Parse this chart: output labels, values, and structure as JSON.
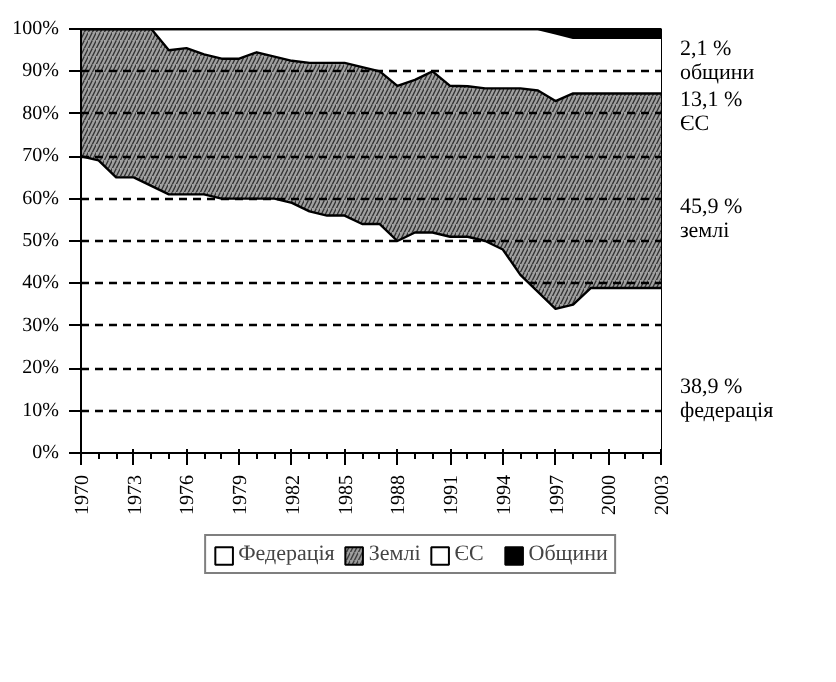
{
  "chart_data": {
    "type": "area",
    "stacked": true,
    "x": [
      1970,
      1971,
      1972,
      1973,
      1974,
      1975,
      1976,
      1977,
      1978,
      1979,
      1980,
      1981,
      1982,
      1983,
      1984,
      1985,
      1986,
      1987,
      1988,
      1989,
      1990,
      1991,
      1992,
      1993,
      1994,
      1995,
      1996,
      1997,
      1998,
      1999,
      2000,
      2001,
      2002,
      2003
    ],
    "series": [
      {
        "name": "Федерація",
        "color": "#ffffff",
        "values": [
          70,
          69,
          65,
          65,
          63,
          61,
          61,
          61,
          60,
          60,
          60,
          60,
          59,
          57,
          56,
          56,
          54,
          54,
          50,
          52,
          52,
          51,
          51,
          50,
          48,
          42,
          38,
          34,
          35,
          38.9,
          38.9,
          38.9,
          38.9,
          38.9
        ]
      },
      {
        "name": "Землі",
        "color": "#a0a0a0",
        "values": [
          30,
          31,
          35,
          35,
          37,
          34,
          34.5,
          33,
          33,
          33,
          34.5,
          33.5,
          33.5,
          35,
          36,
          36,
          37,
          36,
          36.6,
          36,
          38,
          35.6,
          35.5,
          36,
          38,
          44,
          47.5,
          49,
          49.8,
          45.9,
          45.9,
          45.9,
          45.9,
          45.9
        ]
      },
      {
        "name": "ЄС",
        "color": "#ffffff",
        "values": [
          0,
          0,
          0,
          0,
          0,
          5,
          4.5,
          6,
          7,
          7,
          5.5,
          6.5,
          7.5,
          8,
          8,
          8,
          9,
          10,
          13.4,
          12,
          10,
          13.4,
          13.5,
          14,
          14,
          14,
          14.5,
          16,
          13.1,
          13.1,
          13.1,
          13.1,
          13.1,
          13.1
        ]
      },
      {
        "name": "Общини",
        "color": "#000000",
        "values": [
          0,
          0,
          0,
          0,
          0,
          0,
          0,
          0,
          0,
          0,
          0,
          0,
          0,
          0,
          0,
          0,
          0,
          0,
          0,
          0,
          0,
          0,
          0,
          0,
          0,
          0,
          0,
          1,
          2.1,
          2.1,
          2.1,
          2.1,
          2.1,
          2.1
        ]
      }
    ],
    "xlim": [
      1970,
      2003
    ],
    "xticks": [
      1970,
      1973,
      1976,
      1979,
      1982,
      1985,
      1988,
      1991,
      1994,
      1997,
      2000,
      2003
    ],
    "ylim": [
      0,
      100
    ],
    "yticks": [
      {
        "value": 0,
        "label": "0%"
      },
      {
        "value": 10,
        "label": "10%"
      },
      {
        "value": 20,
        "label": "20%"
      },
      {
        "value": 30,
        "label": "30%"
      },
      {
        "value": 40,
        "label": "40%"
      },
      {
        "value": 50,
        "label": "50%"
      },
      {
        "value": 60,
        "label": "60%"
      },
      {
        "value": 70,
        "label": "70%"
      },
      {
        "value": 80,
        "label": "80%"
      },
      {
        "value": 90,
        "label": "90%"
      },
      {
        "value": 100,
        "label": "100%"
      }
    ],
    "grid": "y",
    "legend": "bottom",
    "annotations": [
      "38,9 %\nфедерація",
      "45,9 %\nземлі",
      "13,1 %\nЄС",
      "2,1 %\nобщини"
    ]
  }
}
